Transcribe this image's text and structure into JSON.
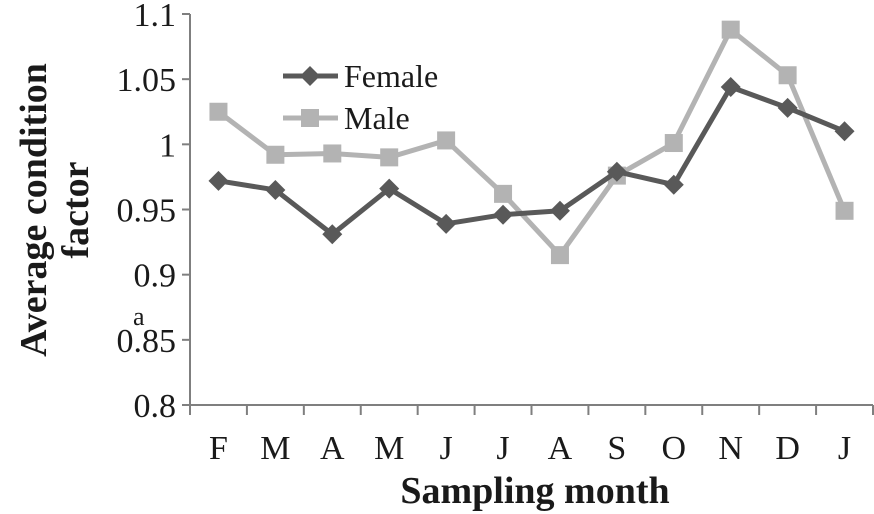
{
  "chart_data": {
    "type": "line",
    "title": "",
    "xlabel": "Sampling month",
    "ylabel_line1": "Average condition",
    "ylabel_line2": "factor",
    "categories": [
      "F",
      "M",
      "A",
      "M",
      "J",
      "J",
      "A",
      "S",
      "O",
      "N",
      "D",
      "J"
    ],
    "yticks": [
      "0.8",
      "0.85",
      "0.9",
      "0.95",
      "1",
      "1.05",
      "1.1"
    ],
    "ylim": [
      0.8,
      1.1
    ],
    "grid": false,
    "legend_position": "top-left",
    "stray_label": "a",
    "series": [
      {
        "name": "Female",
        "marker": "diamond",
        "color": "#595959",
        "values": [
          0.972,
          0.965,
          0.931,
          0.966,
          0.939,
          0.946,
          0.949,
          0.979,
          0.969,
          1.044,
          1.028,
          1.01
        ]
      },
      {
        "name": "Male",
        "marker": "square",
        "color": "#b3b3b3",
        "values": [
          1.025,
          0.992,
          0.993,
          0.99,
          1.003,
          0.962,
          0.915,
          0.976,
          1.001,
          1.088,
          1.053,
          0.949
        ]
      }
    ]
  }
}
